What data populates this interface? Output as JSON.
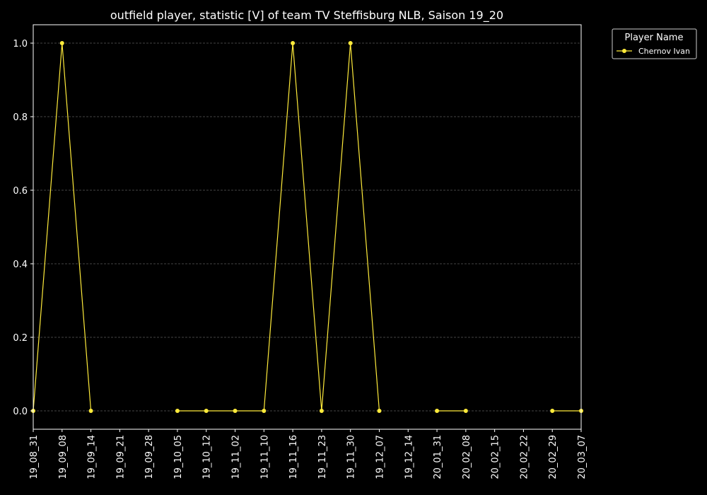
{
  "chart_data": {
    "type": "line",
    "title": "outfield player, statistic [V] of team TV Steffisburg NLB, Saison 19_20",
    "xlabel": "",
    "ylabel": "",
    "x": [
      "19_08_31",
      "19_09_08",
      "19_09_14",
      "19_09_21",
      "19_09_28",
      "19_10_05",
      "19_10_12",
      "19_11_02",
      "19_11_10",
      "19_11_16",
      "19_11_23",
      "19_11_30",
      "19_12_07",
      "19_12_14",
      "20_01_31",
      "20_02_08",
      "20_02_15",
      "20_02_22",
      "20_02_29",
      "20_03_07"
    ],
    "yticks": [
      "0.0",
      "0.2",
      "0.4",
      "0.6",
      "0.8",
      "1.0"
    ],
    "ylim": [
      -0.05,
      1.05
    ],
    "grid": "horizontal dashed",
    "legend": {
      "title": "Player Name",
      "placement": "outside top-right"
    },
    "series": [
      {
        "name": "Chernov Ivan",
        "color": "#ffeb3b",
        "values": [
          0,
          1,
          0,
          null,
          null,
          0,
          0,
          0,
          0,
          1,
          0,
          1,
          0,
          null,
          0,
          0,
          null,
          null,
          0,
          0
        ]
      }
    ]
  }
}
